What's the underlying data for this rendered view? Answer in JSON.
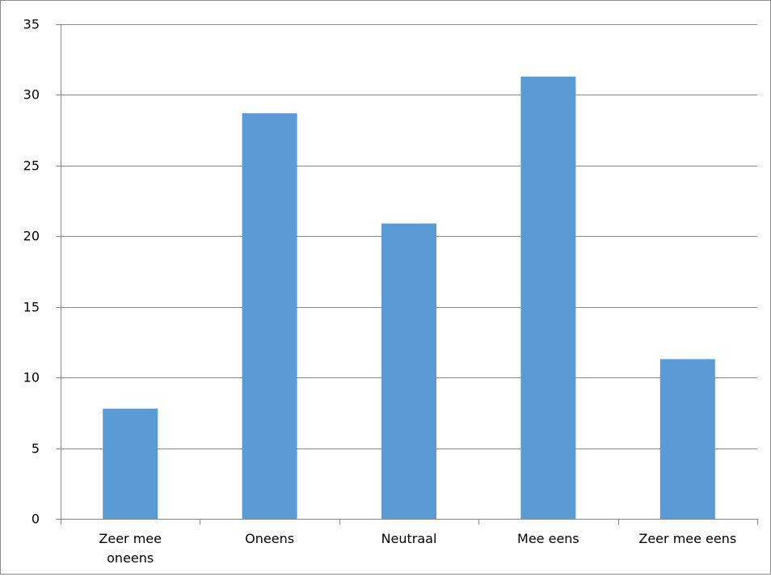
{
  "chart_data": {
    "type": "bar",
    "categories": [
      "Zeer mee oneens",
      "Oneens",
      "Neutraal",
      "Mee eens",
      "Zeer mee eens"
    ],
    "category_lines": [
      [
        "Zeer mee",
        "oneens"
      ],
      [
        "Oneens"
      ],
      [
        "Neutraal"
      ],
      [
        "Mee eens"
      ],
      [
        "Zeer mee eens"
      ]
    ],
    "values": [
      7.8,
      28.7,
      20.9,
      31.3,
      11.3
    ],
    "yticks": [
      0,
      5,
      10,
      15,
      20,
      25,
      30,
      35
    ],
    "ylim": [
      0,
      35
    ],
    "grid": true,
    "bar_color": "#5b9bd5",
    "gridline_color": "#878787"
  }
}
